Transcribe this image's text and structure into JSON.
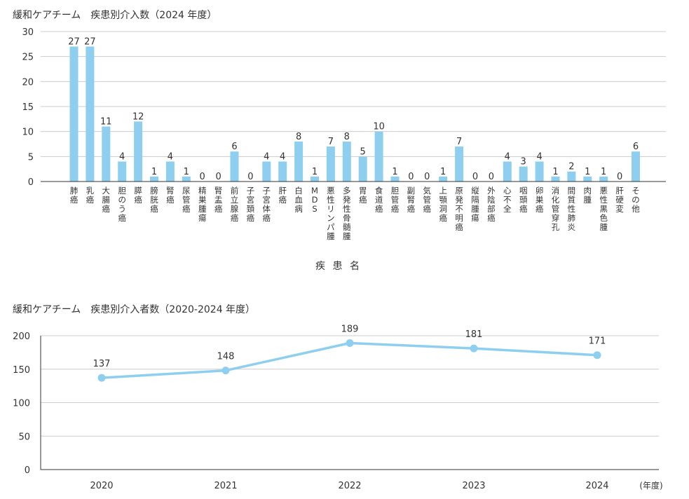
{
  "chart_data": [
    {
      "type": "bar",
      "title": "緩和ケアチーム　疾患別介入数（2024 年度）",
      "xlabel": "疾 患 名",
      "ylabel": "",
      "ylim": [
        0,
        30
      ],
      "yticks": [
        0,
        5,
        10,
        15,
        20,
        25,
        30
      ],
      "grid": true,
      "color": "#8ecff0",
      "categories": [
        "肺癌",
        "乳癌",
        "大腸癌",
        "胆のう癌",
        "膵癌",
        "膀胱癌",
        "腎癌",
        "尿管癌",
        "精巣腫瘍",
        "腎盂癌",
        "前立腺癌",
        "子宮頚癌",
        "子宮体癌",
        "肝癌",
        "白血病",
        "MDS",
        "悪性リンパ腫",
        "多発性骨髄腫",
        "胃癌",
        "食道癌",
        "胆管癌",
        "副腎癌",
        "気管癌",
        "上顎洞癌",
        "原発不明癌",
        "縦隔腫瘍",
        "外陰部癌",
        "心不全",
        "咽頭癌",
        "卵巣癌",
        "消化管穿孔",
        "間質性肺炎",
        "肉腫",
        "悪性黒色腫",
        "肝硬変",
        "その他"
      ],
      "values": [
        27,
        27,
        11,
        4,
        12,
        1,
        4,
        1,
        0,
        0,
        6,
        0,
        4,
        4,
        8,
        1,
        7,
        8,
        5,
        10,
        1,
        0,
        0,
        1,
        7,
        0,
        0,
        4,
        3,
        4,
        1,
        2,
        1,
        1,
        0,
        6
      ]
    },
    {
      "type": "line",
      "title": "緩和ケアチーム　疾患別介入者数（2020-2024 年度）",
      "xlabel": "",
      "unit_label": "(年度)",
      "ylabel": "",
      "ylim": [
        0,
        200
      ],
      "yticks": [
        0,
        50,
        100,
        150,
        200
      ],
      "grid": true,
      "color": "#8ecff0",
      "x": [
        "2020",
        "2021",
        "2022",
        "2023",
        "2024"
      ],
      "values": [
        137,
        148,
        189,
        181,
        171
      ]
    }
  ]
}
